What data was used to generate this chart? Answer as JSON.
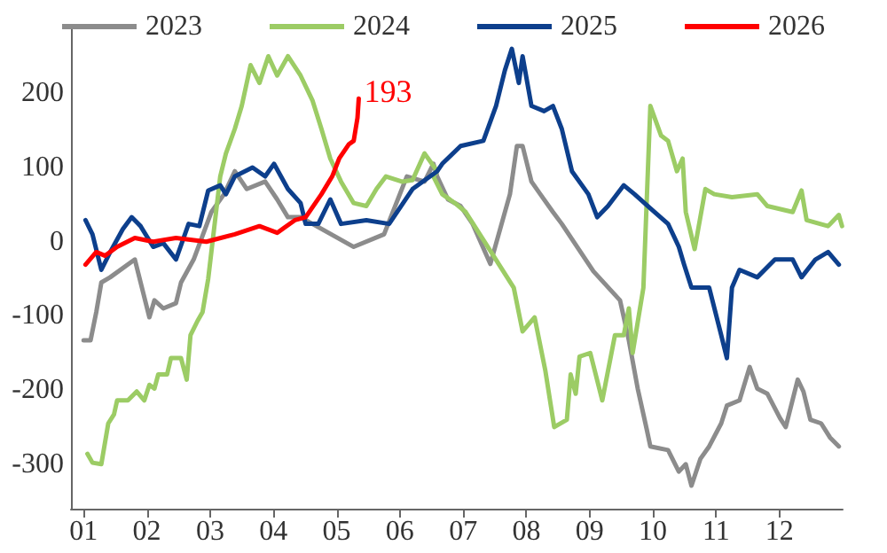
{
  "chart_data": {
    "type": "line",
    "xlim": [
      0.8,
      13.0
    ],
    "xticks": [
      {
        "value": 1,
        "label": "01"
      },
      {
        "value": 2,
        "label": "02"
      },
      {
        "value": 3,
        "label": "03"
      },
      {
        "value": 4,
        "label": "04"
      },
      {
        "value": 5,
        "label": "05"
      },
      {
        "value": 6,
        "label": "06"
      },
      {
        "value": 7,
        "label": "07"
      },
      {
        "value": 8,
        "label": "08"
      },
      {
        "value": 9,
        "label": "09"
      },
      {
        "value": 10,
        "label": "10"
      },
      {
        "value": 11,
        "label": "11"
      },
      {
        "value": 12,
        "label": "12"
      }
    ],
    "ylim": [
      -360,
      290
    ],
    "yticks": [
      -300,
      -200,
      -100,
      0,
      100,
      200
    ],
    "grid": false,
    "legend": "top",
    "marker": "none",
    "line_style": "solid",
    "annotations": [
      {
        "text": "193",
        "x": 5.35,
        "y": 193
      }
    ],
    "series": [
      {
        "name": "2023",
        "color": "#8c8c8c",
        "x": [
          1.0,
          1.11,
          1.2,
          1.28,
          1.42,
          1.81,
          2.04,
          2.12,
          2.26,
          2.46,
          2.54,
          2.74,
          3.02,
          3.22,
          3.39,
          3.58,
          3.87,
          4.06,
          4.23,
          4.43,
          5.27,
          5.75,
          6.11,
          6.39,
          6.53,
          6.59,
          6.76,
          6.96,
          7.15,
          7.43,
          7.74,
          7.85,
          7.94,
          8.08,
          8.22,
          8.42,
          8.56,
          9.06,
          9.48,
          9.62,
          9.76,
          9.9,
          9.96,
          10.24,
          10.41,
          10.52,
          10.61,
          10.75,
          10.89,
          11.08,
          11.17,
          11.37,
          11.53,
          11.65,
          11.81,
          12.01,
          12.1,
          12.29,
          12.38,
          12.49,
          12.66,
          12.8,
          12.94
        ],
        "values": [
          -133,
          -133,
          -95,
          -55,
          -48,
          -24,
          -102,
          -79,
          -90,
          -83,
          -55,
          -24,
          40,
          64,
          95,
          71,
          81,
          57,
          33,
          33,
          -7,
          10,
          88,
          81,
          105,
          88,
          57,
          48,
          24,
          -30,
          64,
          129,
          129,
          81,
          64,
          40,
          24,
          -40,
          -79,
          -133,
          -198,
          -252,
          -276,
          -281,
          -310,
          -300,
          -329,
          -293,
          -276,
          -245,
          -221,
          -214,
          -169,
          -198,
          -205,
          -238,
          -250,
          -186,
          -202,
          -240,
          -245,
          -264,
          -276
        ]
      },
      {
        "name": "2024",
        "color": "#9ccc65",
        "x": [
          1.06,
          1.14,
          1.28,
          1.39,
          1.48,
          1.53,
          1.7,
          1.84,
          1.96,
          2.04,
          2.12,
          2.18,
          2.32,
          2.38,
          2.54,
          2.63,
          2.69,
          2.8,
          2.88,
          2.97,
          3.16,
          3.25,
          3.39,
          3.5,
          3.64,
          3.78,
          3.92,
          4.06,
          4.23,
          4.43,
          4.62,
          4.76,
          4.9,
          5.07,
          5.27,
          5.47,
          5.63,
          5.78,
          6.03,
          6.2,
          6.39,
          6.59,
          6.53,
          6.67,
          6.87,
          7.04,
          7.8,
          7.94,
          8.13,
          8.3,
          8.44,
          8.64,
          8.7,
          8.78,
          8.84,
          9.01,
          9.2,
          9.4,
          9.54,
          9.62,
          9.68,
          9.85,
          9.96,
          10.13,
          10.24,
          10.38,
          10.47,
          10.52,
          10.66,
          10.83,
          10.97,
          11.25,
          11.65,
          11.81,
          12.21,
          12.35,
          12.43,
          12.77,
          12.94,
          12.99
        ],
        "values": [
          -286,
          -298,
          -300,
          -245,
          -233,
          -214,
          -214,
          -202,
          -214,
          -193,
          -198,
          -179,
          -179,
          -157,
          -157,
          -186,
          -126,
          -107,
          -95,
          -50,
          88,
          119,
          152,
          183,
          238,
          214,
          250,
          224,
          250,
          224,
          190,
          152,
          112,
          81,
          52,
          48,
          71,
          88,
          81,
          83,
          119,
          95,
          88,
          64,
          52,
          40,
          -62,
          -121,
          -102,
          -174,
          -250,
          -240,
          -179,
          -205,
          -155,
          -150,
          -214,
          -126,
          -126,
          -90,
          -150,
          -62,
          183,
          143,
          136,
          95,
          112,
          40,
          -10,
          71,
          64,
          60,
          64,
          48,
          40,
          69,
          29,
          21,
          36,
          21
        ]
      },
      {
        "name": "2025",
        "color": "#0d3f8c",
        "x": [
          1.03,
          1.14,
          1.28,
          1.42,
          1.62,
          1.76,
          1.9,
          2.1,
          2.26,
          2.46,
          2.66,
          2.83,
          2.97,
          3.16,
          3.25,
          3.39,
          3.67,
          3.87,
          4.01,
          4.23,
          4.43,
          4.51,
          4.71,
          4.9,
          5.07,
          5.47,
          5.83,
          6.2,
          6.59,
          6.67,
          6.96,
          7.32,
          7.52,
          7.66,
          7.77,
          7.88,
          7.94,
          8.08,
          8.28,
          8.42,
          8.56,
          8.72,
          8.98,
          9.12,
          9.29,
          9.54,
          9.71,
          9.96,
          10.24,
          10.41,
          10.49,
          10.61,
          10.89,
          11.08,
          11.17,
          11.25,
          11.37,
          11.65,
          11.93,
          12.21,
          12.35,
          12.57,
          12.77,
          12.94
        ],
        "values": [
          29,
          10,
          -38,
          -14,
          17,
          33,
          21,
          -7,
          -2,
          -24,
          24,
          21,
          69,
          76,
          64,
          88,
          100,
          88,
          105,
          71,
          52,
          24,
          24,
          57,
          24,
          29,
          24,
          71,
          95,
          105,
          129,
          136,
          183,
          231,
          260,
          214,
          250,
          183,
          176,
          183,
          152,
          95,
          64,
          33,
          48,
          76,
          64,
          45,
          24,
          -7,
          -30,
          -62,
          -62,
          -126,
          -157,
          -62,
          -38,
          -48,
          -24,
          -24,
          -48,
          -24,
          -14,
          -31
        ]
      },
      {
        "name": "2026",
        "color": "#ff0000",
        "x": [
          1.03,
          1.2,
          1.34,
          1.53,
          1.81,
          2.1,
          2.46,
          2.94,
          3.39,
          3.78,
          4.06,
          4.34,
          4.51,
          4.76,
          4.93,
          5.04,
          5.19,
          5.27,
          5.33,
          5.35
        ],
        "values": [
          -31,
          -14,
          -19,
          -7,
          5,
          0,
          5,
          0,
          10,
          21,
          12,
          29,
          33,
          64,
          88,
          112,
          131,
          136,
          167,
          193
        ]
      }
    ]
  }
}
